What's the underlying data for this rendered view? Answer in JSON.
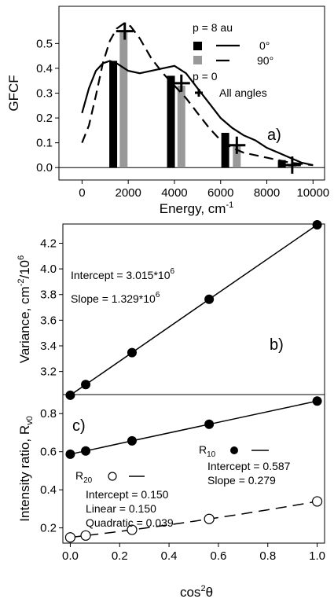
{
  "chart_data": [
    {
      "panel": "a)",
      "type": "bar",
      "xlabel": "Energy, cm",
      "xlabel_sup": "-1",
      "ylabel": "GFCF",
      "xlim": [
        -1000,
        10500
      ],
      "ylim": [
        -0.05,
        0.65
      ],
      "xticks": [
        0,
        2000,
        4000,
        6000,
        8000,
        10000
      ],
      "yticks": [
        0.0,
        0.1,
        0.2,
        0.3,
        0.4,
        0.5
      ],
      "legend": {
        "p8_title": "p = 8 au",
        "p0_title": "p = 0",
        "items": [
          {
            "label": "0°",
            "color": "#000000",
            "line": "solid"
          },
          {
            "label": "90°",
            "color": "#999999",
            "line": "dashed"
          },
          {
            "label": "All angles",
            "marker": "plus"
          }
        ]
      },
      "bars": [
        {
          "angle": "0°",
          "color": "#000000",
          "x": [
            1350,
            3850,
            6200,
            8650
          ],
          "values": [
            0.43,
            0.37,
            0.14,
            0.03
          ]
        },
        {
          "angle": "90°",
          "color": "#999999",
          "x": [
            1800,
            4300,
            6700,
            9100
          ],
          "values": [
            0.55,
            0.33,
            0.09,
            0.01
          ]
        }
      ],
      "cross_points": {
        "x": [
          1850,
          4300,
          6700,
          9100
        ],
        "y": [
          0.55,
          0.34,
          0.09,
          0.01
        ]
      },
      "curve_0deg": {
        "x": [
          0,
          300,
          600,
          900,
          1200,
          1500,
          2000,
          2500,
          3000,
          3500,
          4000,
          4500,
          5000,
          5500,
          6000,
          6500,
          7000,
          7500,
          8000,
          8500,
          9000,
          9500,
          10000
        ],
        "y": [
          0.22,
          0.32,
          0.39,
          0.42,
          0.43,
          0.42,
          0.39,
          0.38,
          0.39,
          0.4,
          0.41,
          0.38,
          0.32,
          0.26,
          0.2,
          0.16,
          0.13,
          0.11,
          0.08,
          0.06,
          0.04,
          0.02,
          0.01
        ]
      },
      "curve_90deg": {
        "x": [
          0,
          300,
          600,
          900,
          1200,
          1500,
          1800,
          2100,
          2500,
          3000,
          3500,
          4000,
          4500,
          5000,
          5500,
          6000,
          6500,
          7000,
          7500,
          8000,
          8500,
          9000,
          9500,
          10000
        ],
        "y": [
          0.1,
          0.17,
          0.29,
          0.42,
          0.51,
          0.56,
          0.58,
          0.57,
          0.52,
          0.44,
          0.38,
          0.33,
          0.28,
          0.22,
          0.16,
          0.11,
          0.08,
          0.06,
          0.05,
          0.04,
          0.03,
          0.02,
          0.015,
          0.01
        ]
      }
    },
    {
      "panel": "b)",
      "type": "scatter",
      "ylabel": "Variance, cm",
      "ylabel_sup1": "-2",
      "ylabel_mid": "/10",
      "ylabel_sup2": "6",
      "xlim": [
        -0.03,
        1.03
      ],
      "ylim": [
        3.02,
        4.35
      ],
      "yticks": [
        3.2,
        3.4,
        3.6,
        3.8,
        4.0,
        4.2
      ],
      "annotation_intercept": "Intercept = 3.015*10",
      "annotation_intercept_sup": "6",
      "annotation_slope": "Slope = 1.329*10",
      "annotation_slope_sup": "6",
      "x": [
        0.0,
        0.0625,
        0.25,
        0.5625,
        1.0
      ],
      "y": [
        3.015,
        3.098,
        3.347,
        3.763,
        4.344
      ]
    },
    {
      "panel": "c)",
      "type": "scatter",
      "xlabel": "cos",
      "xlabel_sup": "2",
      "xlabel_end": "θ",
      "ylabel": "Intensity ratio, R",
      "ylabel_sub": "v0",
      "xlim": [
        -0.03,
        1.03
      ],
      "ylim": [
        0.12,
        0.9
      ],
      "xticks": [
        0.0,
        0.2,
        0.4,
        0.6,
        0.8,
        1.0
      ],
      "xtick_labels": [
        "0.0",
        "0.2",
        "0.4",
        "0.6",
        "0.8",
        "1.0"
      ],
      "yticks": [
        0.2,
        0.4,
        0.6,
        0.8
      ],
      "series": [
        {
          "name": "R",
          "name_sub": "10",
          "marker": "filled",
          "line": "solid",
          "x": [
            0.0,
            0.0625,
            0.25,
            0.5625,
            1.0
          ],
          "y": [
            0.587,
            0.604,
            0.657,
            0.744,
            0.866
          ],
          "intercept_text": "Intercept = 0.587",
          "slope_text": "Slope = 0.279"
        },
        {
          "name": "R",
          "name_sub": "20",
          "marker": "open",
          "line": "dashed",
          "x": [
            0.0,
            0.0625,
            0.25,
            0.5625,
            1.0
          ],
          "y": [
            0.15,
            0.16,
            0.19,
            0.247,
            0.339
          ],
          "intercept_text": "Intercept = 0.150",
          "linear_text": "Linear = 0.150",
          "quadratic_text": "Quadratic = 0.039",
          "fit": {
            "a": 0.15,
            "b": 0.15,
            "c": 0.039
          }
        }
      ]
    }
  ]
}
